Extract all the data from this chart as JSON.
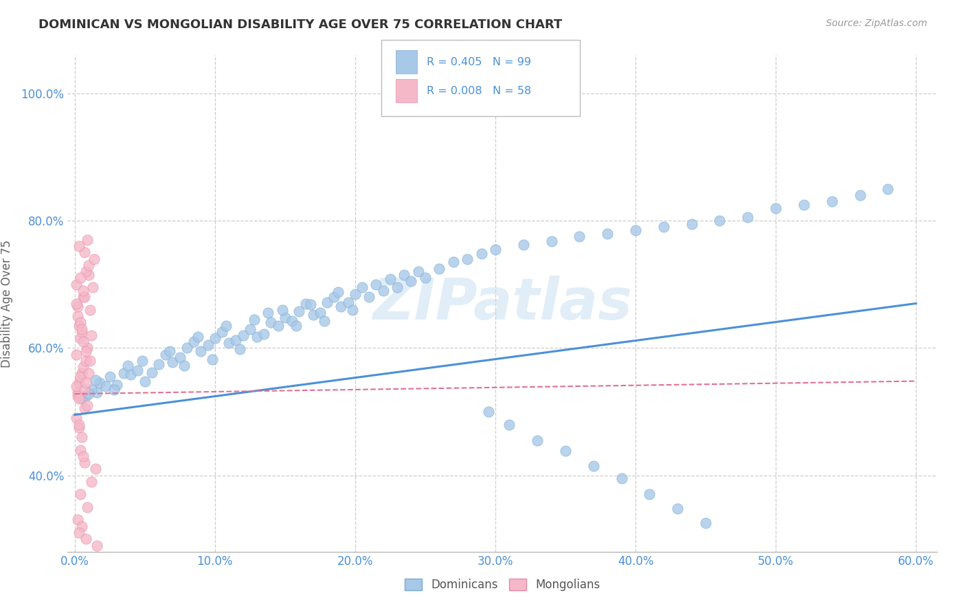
{
  "title": "DOMINICAN VS MONGOLIAN DISABILITY AGE OVER 75 CORRELATION CHART",
  "source": "Source: ZipAtlas.com",
  "ylabel": "Disability Age Over 75",
  "xlim": [
    -0.005,
    0.615
  ],
  "ylim": [
    0.28,
    1.06
  ],
  "xtick_labels": [
    "0.0%",
    "10.0%",
    "20.0%",
    "30.0%",
    "40.0%",
    "50.0%",
    "60.0%"
  ],
  "xtick_vals": [
    0.0,
    0.1,
    0.2,
    0.3,
    0.4,
    0.5,
    0.6
  ],
  "ytick_labels": [
    "40.0%",
    "60.0%",
    "80.0%",
    "100.0%"
  ],
  "ytick_vals": [
    0.4,
    0.6,
    0.8,
    1.0
  ],
  "grid_ytick_vals": [
    0.4,
    0.6,
    0.8,
    1.0
  ],
  "dominican_color": "#a8c8e8",
  "mongolian_color": "#f5b8c8",
  "dominican_edge_color": "#7aaad0",
  "mongolian_edge_color": "#e88aaa",
  "dominican_trend_color": "#4a90d9",
  "mongolian_trend_color": "#e07090",
  "legend_R1": "R = 0.405",
  "legend_N1": "N = 99",
  "legend_R2": "R = 0.008",
  "legend_N2": "N = 58",
  "watermark": "ZIPatlas",
  "dominican_R": 0.405,
  "dominican_N": 99,
  "mongolian_R": 0.008,
  "mongolian_N": 58,
  "dom_x": [
    0.016,
    0.018,
    0.005,
    0.012,
    0.008,
    0.022,
    0.015,
    0.01,
    0.025,
    0.03,
    0.035,
    0.028,
    0.04,
    0.038,
    0.045,
    0.05,
    0.048,
    0.055,
    0.06,
    0.065,
    0.07,
    0.068,
    0.075,
    0.08,
    0.078,
    0.085,
    0.09,
    0.088,
    0.095,
    0.1,
    0.098,
    0.105,
    0.11,
    0.108,
    0.115,
    0.12,
    0.118,
    0.125,
    0.13,
    0.128,
    0.135,
    0.14,
    0.138,
    0.145,
    0.15,
    0.148,
    0.155,
    0.16,
    0.158,
    0.165,
    0.17,
    0.168,
    0.175,
    0.18,
    0.178,
    0.185,
    0.19,
    0.188,
    0.195,
    0.2,
    0.198,
    0.205,
    0.21,
    0.215,
    0.22,
    0.225,
    0.23,
    0.235,
    0.24,
    0.245,
    0.25,
    0.26,
    0.27,
    0.28,
    0.29,
    0.3,
    0.32,
    0.34,
    0.36,
    0.38,
    0.4,
    0.42,
    0.44,
    0.46,
    0.48,
    0.5,
    0.52,
    0.54,
    0.56,
    0.58,
    0.295,
    0.31,
    0.33,
    0.35,
    0.37,
    0.39,
    0.41,
    0.43,
    0.45
  ],
  "dom_y": [
    0.53,
    0.545,
    0.52,
    0.535,
    0.525,
    0.54,
    0.55,
    0.528,
    0.555,
    0.542,
    0.56,
    0.535,
    0.558,
    0.572,
    0.565,
    0.548,
    0.58,
    0.562,
    0.575,
    0.59,
    0.578,
    0.595,
    0.585,
    0.6,
    0.572,
    0.61,
    0.595,
    0.618,
    0.605,
    0.615,
    0.582,
    0.625,
    0.608,
    0.635,
    0.612,
    0.62,
    0.598,
    0.63,
    0.618,
    0.645,
    0.622,
    0.64,
    0.655,
    0.635,
    0.648,
    0.66,
    0.642,
    0.658,
    0.635,
    0.67,
    0.652,
    0.668,
    0.655,
    0.672,
    0.642,
    0.68,
    0.665,
    0.688,
    0.672,
    0.685,
    0.66,
    0.695,
    0.68,
    0.7,
    0.69,
    0.708,
    0.695,
    0.715,
    0.705,
    0.72,
    0.71,
    0.725,
    0.735,
    0.74,
    0.748,
    0.755,
    0.762,
    0.768,
    0.775,
    0.78,
    0.785,
    0.79,
    0.795,
    0.8,
    0.805,
    0.82,
    0.825,
    0.83,
    0.84,
    0.85,
    0.5,
    0.48,
    0.455,
    0.438,
    0.415,
    0.395,
    0.37,
    0.348,
    0.325
  ],
  "mon_x": [
    0.002,
    0.003,
    0.001,
    0.005,
    0.004,
    0.006,
    0.002,
    0.008,
    0.003,
    0.007,
    0.001,
    0.004,
    0.009,
    0.005,
    0.011,
    0.003,
    0.006,
    0.002,
    0.008,
    0.01,
    0.004,
    0.007,
    0.001,
    0.003,
    0.012,
    0.005,
    0.008,
    0.002,
    0.006,
    0.009,
    0.013,
    0.004,
    0.007,
    0.001,
    0.005,
    0.01,
    0.003,
    0.008,
    0.006,
    0.015,
    0.012,
    0.004,
    0.009,
    0.002,
    0.007,
    0.011,
    0.005,
    0.003,
    0.008,
    0.016,
    0.001,
    0.006,
    0.004,
    0.01,
    0.014,
    0.007,
    0.003,
    0.009
  ],
  "mon_y": [
    0.53,
    0.545,
    0.54,
    0.56,
    0.555,
    0.57,
    0.525,
    0.58,
    0.52,
    0.535,
    0.59,
    0.615,
    0.6,
    0.625,
    0.58,
    0.635,
    0.61,
    0.65,
    0.595,
    0.56,
    0.64,
    0.505,
    0.49,
    0.475,
    0.62,
    0.63,
    0.545,
    0.665,
    0.68,
    0.51,
    0.695,
    0.44,
    0.42,
    0.7,
    0.46,
    0.715,
    0.48,
    0.72,
    0.43,
    0.41,
    0.39,
    0.37,
    0.35,
    0.33,
    0.68,
    0.66,
    0.32,
    0.31,
    0.3,
    0.29,
    0.67,
    0.69,
    0.71,
    0.73,
    0.74,
    0.75,
    0.76,
    0.77
  ],
  "dom_trend_x0": 0.0,
  "dom_trend_x1": 0.6,
  "dom_trend_y0": 0.495,
  "dom_trend_y1": 0.67,
  "mon_trend_x0": 0.0,
  "mon_trend_x1": 0.6,
  "mon_trend_y0": 0.528,
  "mon_trend_y1": 0.548
}
